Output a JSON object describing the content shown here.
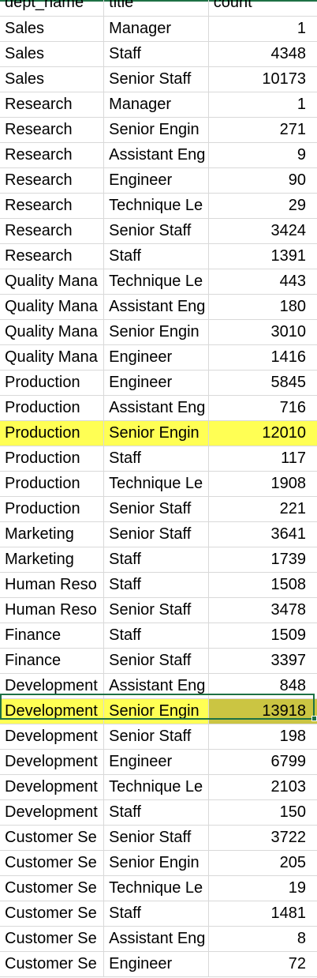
{
  "columns": [
    "dept_name",
    "title",
    "count"
  ],
  "rows": [
    {
      "dept": "Sales",
      "title": "Manager",
      "count": "1"
    },
    {
      "dept": "Sales",
      "title": "Staff",
      "count": "4348"
    },
    {
      "dept": "Sales",
      "title": "Senior Staff",
      "count": "10173"
    },
    {
      "dept": "Research",
      "title": "Manager",
      "count": "1"
    },
    {
      "dept": "Research",
      "title": "Senior Engin",
      "count": "271"
    },
    {
      "dept": "Research",
      "title": "Assistant Eng",
      "count": "9"
    },
    {
      "dept": "Research",
      "title": "Engineer",
      "count": "90"
    },
    {
      "dept": "Research",
      "title": "Technique Le",
      "count": "29"
    },
    {
      "dept": "Research",
      "title": "Senior Staff",
      "count": "3424"
    },
    {
      "dept": "Research",
      "title": "Staff",
      "count": "1391"
    },
    {
      "dept": "Quality Mana",
      "title": "Technique Le",
      "count": "443"
    },
    {
      "dept": "Quality Mana",
      "title": "Assistant Eng",
      "count": "180"
    },
    {
      "dept": "Quality Mana",
      "title": "Senior Engin",
      "count": "3010"
    },
    {
      "dept": "Quality Mana",
      "title": "Engineer",
      "count": "1416"
    },
    {
      "dept": "Production",
      "title": "Engineer",
      "count": "5845"
    },
    {
      "dept": "Production",
      "title": "Assistant Eng",
      "count": "716"
    },
    {
      "dept": "Production",
      "title": "Senior Engin",
      "count": "12010",
      "highlight": "yellow"
    },
    {
      "dept": "Production",
      "title": "Staff",
      "count": "117"
    },
    {
      "dept": "Production",
      "title": "Technique Le",
      "count": "1908"
    },
    {
      "dept": "Production",
      "title": "Senior Staff",
      "count": "221"
    },
    {
      "dept": "Marketing",
      "title": "Senior Staff",
      "count": "3641"
    },
    {
      "dept": "Marketing",
      "title": "Staff",
      "count": "1739"
    },
    {
      "dept": "Human Reso",
      "title": "Staff",
      "count": "1508"
    },
    {
      "dept": "Human Reso",
      "title": "Senior Staff",
      "count": "3478"
    },
    {
      "dept": "Finance",
      "title": "Staff",
      "count": "1509"
    },
    {
      "dept": "Finance",
      "title": "Senior Staff",
      "count": "3397"
    },
    {
      "dept": "Development",
      "title": "Assistant Eng",
      "count": "848"
    },
    {
      "dept": "Development",
      "title": "Senior Engin",
      "count": "13918",
      "highlight": "yellow-selected"
    },
    {
      "dept": "Development",
      "title": "Senior Staff",
      "count": "198"
    },
    {
      "dept": "Development",
      "title": "Engineer",
      "count": "6799"
    },
    {
      "dept": "Development",
      "title": "Technique Le",
      "count": "2103"
    },
    {
      "dept": "Development",
      "title": "Staff",
      "count": "150"
    },
    {
      "dept": "Customer Se",
      "title": "Senior Staff",
      "count": "3722"
    },
    {
      "dept": "Customer Se",
      "title": "Senior Engin",
      "count": "205"
    },
    {
      "dept": "Customer Se",
      "title": "Technique Le",
      "count": "19"
    },
    {
      "dept": "Customer Se",
      "title": "Staff",
      "count": "1481"
    },
    {
      "dept": "Customer Se",
      "title": "Assistant Eng",
      "count": "8"
    },
    {
      "dept": "Customer Se",
      "title": "Engineer",
      "count": "72"
    }
  ],
  "colors": {
    "highlight": "#ffff54",
    "selected_highlight": "#cbc542",
    "selection_border": "#1e7145",
    "gridline": "#d9d9d9"
  }
}
